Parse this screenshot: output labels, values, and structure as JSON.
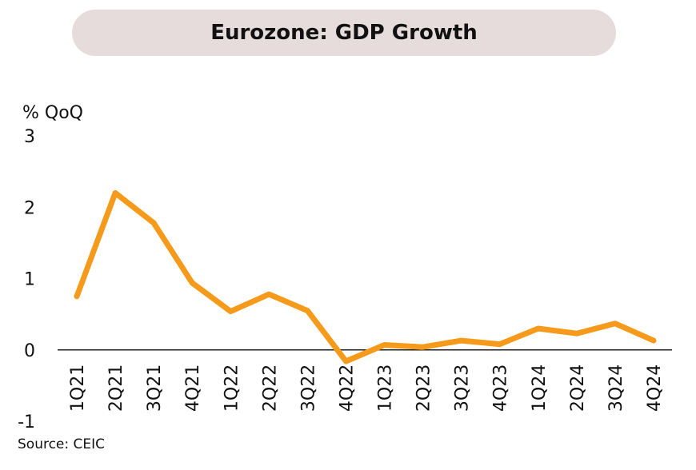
{
  "chart_data": {
    "type": "line",
    "title": "Eurozone: GDP Growth",
    "ylabel": "% QoQ",
    "categories": [
      "1Q21",
      "2Q21",
      "3Q21",
      "4Q21",
      "1Q22",
      "2Q22",
      "3Q22",
      "4Q22",
      "1Q23",
      "2Q23",
      "3Q23",
      "4Q23",
      "1Q24",
      "2Q24",
      "3Q24",
      "4Q24"
    ],
    "series": [
      {
        "values": [
          0.75,
          2.2,
          1.78,
          0.94,
          0.54,
          0.78,
          0.55,
          -0.16,
          0.07,
          0.04,
          0.13,
          0.08,
          0.3,
          0.23,
          0.37,
          0.13
        ]
      }
    ],
    "ylim": [
      -1,
      3
    ],
    "yticks": [
      3,
      2,
      1,
      0,
      -1
    ],
    "grid": false,
    "line_color": "#f59a1b",
    "source": "Source: CEIC"
  }
}
